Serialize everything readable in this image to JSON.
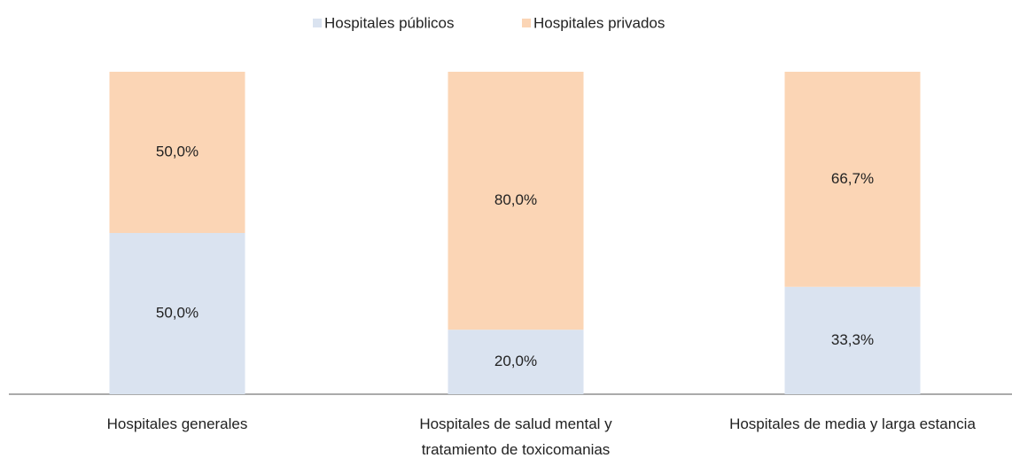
{
  "chart_data": {
    "type": "stacked_bar",
    "categories": [
      "Hospitales generales",
      "Hospitales de salud mental y\ntratamiento de toxicomanias",
      "Hospitales de media y larga estancia"
    ],
    "series": [
      {
        "name": "Hospitales públicos",
        "color": "#dae3f0",
        "values": [
          50,
          20,
          33.3
        ],
        "value_labels": [
          "50,0%",
          "20,0%",
          "33,3%"
        ]
      },
      {
        "name": "Hospitales privados",
        "color": "#fbd5b5",
        "values": [
          50,
          80,
          66.7
        ],
        "value_labels": [
          "50,0%",
          "80,0%",
          "66,7%"
        ]
      }
    ],
    "ylim": [
      0,
      100
    ],
    "legend": "top"
  }
}
